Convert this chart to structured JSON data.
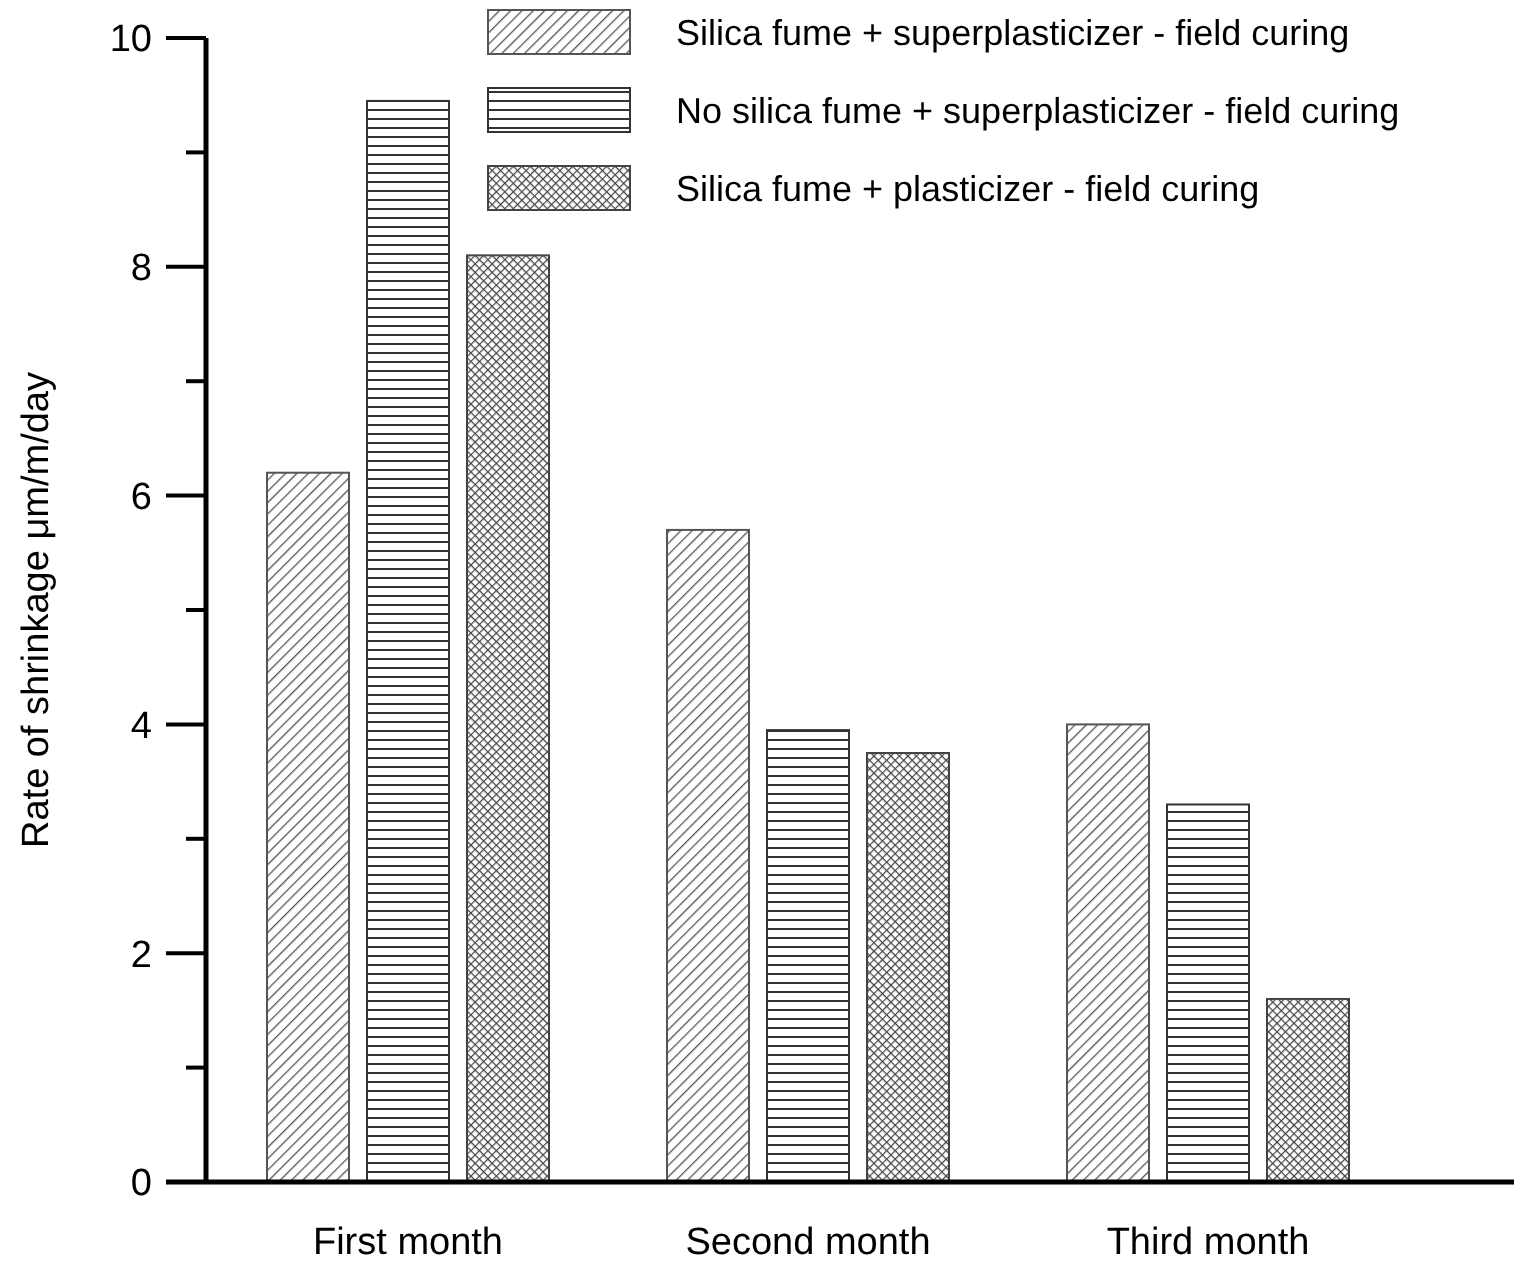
{
  "chart_data": {
    "type": "bar",
    "ylabel": "Rate of shrinkage μm/m/day",
    "categories": [
      "First month",
      "Second month",
      "Third month"
    ],
    "series": [
      {
        "name": "Silica fume + superplasticizer - field curing",
        "color": "#555555",
        "values": [
          6.2,
          5.7,
          4.0
        ]
      },
      {
        "name": "No silica fume + superplasticizer - field curing",
        "color": "#333333",
        "values": [
          9.45,
          3.95,
          3.3
        ]
      },
      {
        "name": "Silica fume + plasticizer - field curing",
        "color": "#444444",
        "values": [
          8.1,
          3.75,
          1.6
        ]
      }
    ],
    "ylim": [
      0,
      10
    ],
    "yticks": [
      0,
      {
        "value": 1,
        "label": null
      },
      2,
      {
        "value": 3,
        "label": null
      },
      4,
      {
        "value": 5,
        "label": null
      },
      6,
      {
        "value": 7,
        "label": null
      },
      8,
      {
        "value": 9,
        "label": null
      },
      10
    ],
    "legend": "top right",
    "grid": false
  }
}
